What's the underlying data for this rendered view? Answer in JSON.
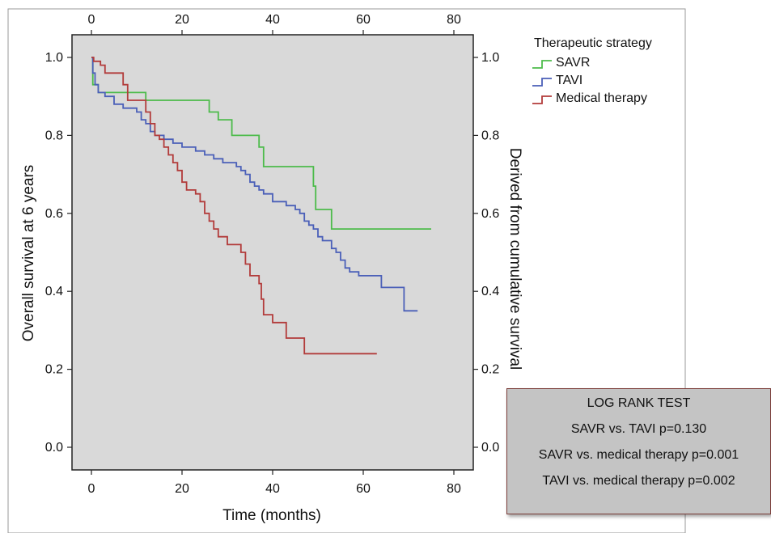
{
  "chart_data": {
    "type": "line",
    "step": true,
    "title": "",
    "xlabel": "Time (months)",
    "ylabel": "Overall survival at 6 years",
    "ylabel_right": "Derived from cumulative survival",
    "xlim": [
      0,
      80
    ],
    "ylim": [
      0,
      1
    ],
    "x_ticks": [
      "0",
      "20",
      "40",
      "60",
      "80"
    ],
    "y_ticks": [
      "0.0",
      "0.2",
      "0.4",
      "0.6",
      "0.8",
      "1.0"
    ],
    "grid": false,
    "legend": {
      "title": "Therapeutic strategy",
      "position": "top-right-outside"
    },
    "series": [
      {
        "name": "SAVR",
        "color": "#4cbb4a",
        "points": [
          [
            0,
            1.0
          ],
          [
            0.3,
            0.93
          ],
          [
            1.5,
            0.91
          ],
          [
            12,
            0.89
          ],
          [
            26,
            0.86
          ],
          [
            28,
            0.84
          ],
          [
            31,
            0.8
          ],
          [
            37,
            0.77
          ],
          [
            38,
            0.72
          ],
          [
            49,
            0.67
          ],
          [
            49.5,
            0.61
          ],
          [
            53,
            0.56
          ],
          [
            75,
            0.56
          ]
        ]
      },
      {
        "name": "TAVI",
        "color": "#4a5fb8",
        "points": [
          [
            0,
            1.0
          ],
          [
            0.3,
            0.96
          ],
          [
            0.8,
            0.93
          ],
          [
            1.5,
            0.91
          ],
          [
            3,
            0.9
          ],
          [
            5,
            0.88
          ],
          [
            7,
            0.87
          ],
          [
            10,
            0.86
          ],
          [
            11,
            0.84
          ],
          [
            12,
            0.83
          ],
          [
            13,
            0.81
          ],
          [
            14,
            0.8
          ],
          [
            16,
            0.79
          ],
          [
            18,
            0.78
          ],
          [
            20,
            0.77
          ],
          [
            23,
            0.76
          ],
          [
            25,
            0.75
          ],
          [
            27,
            0.74
          ],
          [
            29,
            0.73
          ],
          [
            32,
            0.72
          ],
          [
            33,
            0.71
          ],
          [
            34,
            0.7
          ],
          [
            35,
            0.68
          ],
          [
            36,
            0.67
          ],
          [
            37,
            0.66
          ],
          [
            38,
            0.65
          ],
          [
            40,
            0.63
          ],
          [
            43,
            0.62
          ],
          [
            45,
            0.61
          ],
          [
            46,
            0.6
          ],
          [
            47,
            0.58
          ],
          [
            48,
            0.57
          ],
          [
            49,
            0.56
          ],
          [
            50,
            0.54
          ],
          [
            51,
            0.53
          ],
          [
            53,
            0.51
          ],
          [
            54,
            0.5
          ],
          [
            55,
            0.48
          ],
          [
            56,
            0.46
          ],
          [
            57,
            0.45
          ],
          [
            59,
            0.44
          ],
          [
            64,
            0.41
          ],
          [
            69,
            0.35
          ],
          [
            72,
            0.35
          ]
        ]
      },
      {
        "name": "Medical therapy",
        "color": "#b23b3a",
        "points": [
          [
            0,
            1.0
          ],
          [
            0.5,
            0.99
          ],
          [
            2,
            0.98
          ],
          [
            3,
            0.96
          ],
          [
            7,
            0.93
          ],
          [
            8,
            0.89
          ],
          [
            12,
            0.86
          ],
          [
            13,
            0.83
          ],
          [
            14,
            0.8
          ],
          [
            15,
            0.79
          ],
          [
            16,
            0.77
          ],
          [
            17,
            0.75
          ],
          [
            18,
            0.73
          ],
          [
            19,
            0.71
          ],
          [
            20,
            0.68
          ],
          [
            21,
            0.66
          ],
          [
            23,
            0.65
          ],
          [
            24,
            0.63
          ],
          [
            25,
            0.6
          ],
          [
            26,
            0.58
          ],
          [
            27,
            0.56
          ],
          [
            28,
            0.54
          ],
          [
            30,
            0.52
          ],
          [
            33,
            0.5
          ],
          [
            34,
            0.47
          ],
          [
            35,
            0.44
          ],
          [
            37,
            0.42
          ],
          [
            37.5,
            0.38
          ],
          [
            38,
            0.34
          ],
          [
            40,
            0.32
          ],
          [
            43,
            0.28
          ],
          [
            47,
            0.24
          ],
          [
            63,
            0.24
          ]
        ]
      }
    ]
  },
  "log_rank": {
    "title": "LOG RANK TEST",
    "rows": [
      "SAVR vs. TAVI  p=0.130",
      "SAVR vs. medical therapy  p=0.001",
      "TAVI vs. medical therapy  p=0.002"
    ]
  }
}
